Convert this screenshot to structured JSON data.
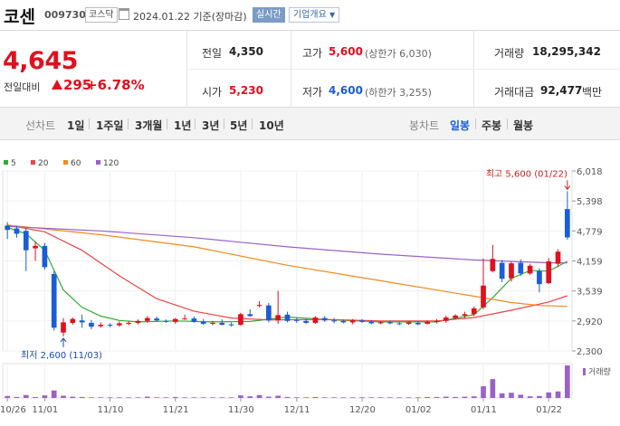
{
  "header": {
    "name": "코센",
    "code": "009730",
    "market_tag": "코스닥",
    "date_text": "2024.01.22 기준(장마감)",
    "live_label": "실시간",
    "corp_label": "기업개요"
  },
  "quote": {
    "price": "4,645",
    "diff_label": "전일대비",
    "diff_value": "295",
    "diff_sep": "|",
    "diff_pct": "+6.78%"
  },
  "stats": {
    "prev_label": "전일",
    "prev_value": "4,350",
    "open_label": "시가",
    "open_value": "5,230",
    "high_label": "고가",
    "high_value": "5,600",
    "upper_limit": "(상한가 6,030)",
    "low_label": "저가",
    "low_value": "4,600",
    "lower_limit": "(하한가 3,255)",
    "volume_label": "거래량",
    "volume_value": "18,295,342",
    "amount_label": "거래대금",
    "amount_value": "92,477",
    "amount_unit": "백만"
  },
  "period": {
    "line_label": "선차트",
    "line_options": [
      "1일",
      "1주일",
      "3개월",
      "1년",
      "3년",
      "5년",
      "10년"
    ],
    "candle_label": "봉차트",
    "candle_options": [
      "일봉",
      "주봉",
      "월봉"
    ],
    "active_candle": "일봉"
  },
  "colors": {
    "up": "#e0101e",
    "down": "#1a5ed6",
    "ma5": "#33aa33",
    "ma20": "#ee4444",
    "ma60": "#f08a1c",
    "ma120": "#9a62c8",
    "volume": "#9a62c8"
  },
  "chart_data": {
    "type": "candlestick",
    "legend": [
      {
        "name": "5",
        "color": "#33aa33"
      },
      {
        "name": "20",
        "color": "#ee4444"
      },
      {
        "name": "60",
        "color": "#f08a1c"
      },
      {
        "name": "120",
        "color": "#9a62c8"
      }
    ],
    "yticks": [
      6018,
      5398,
      4779,
      4159,
      3539,
      2920,
      2300
    ],
    "ytick_labels": [
      "6,018",
      "5,398",
      "4,779",
      "4,159",
      "3,539",
      "2,920",
      "2,300"
    ],
    "ylim": [
      2300,
      6018
    ],
    "xticks": [
      {
        "label": "10/26",
        "index": 0
      },
      {
        "label": "11/01",
        "index": 4
      },
      {
        "label": "11/10",
        "index": 11
      },
      {
        "label": "11/21",
        "index": 18
      },
      {
        "label": "11/30",
        "index": 25
      },
      {
        "label": "12/11",
        "index": 31
      },
      {
        "label": "12/20",
        "index": 38
      },
      {
        "label": "01/02",
        "index": 44
      },
      {
        "label": "01/11",
        "index": 51
      },
      {
        "label": "01/22",
        "index": 58
      }
    ],
    "max_annotation": "최고 5,600 (01/22)",
    "min_annotation": "최저 2,600 (11/03)",
    "volume_label": "거래량",
    "candles": [
      {
        "o": 4890,
        "h": 4960,
        "l": 4610,
        "c": 4800
      },
      {
        "o": 4830,
        "h": 4880,
        "l": 4640,
        "c": 4720
      },
      {
        "o": 4780,
        "h": 4830,
        "l": 3950,
        "c": 4380
      },
      {
        "o": 4420,
        "h": 4560,
        "l": 4160,
        "c": 4470
      },
      {
        "o": 4470,
        "h": 4530,
        "l": 3980,
        "c": 4030
      },
      {
        "o": 3890,
        "h": 3950,
        "l": 2720,
        "c": 2780
      },
      {
        "o": 2680,
        "h": 2980,
        "l": 2600,
        "c": 2890
      },
      {
        "o": 2880,
        "h": 2990,
        "l": 2840,
        "c": 2960
      },
      {
        "o": 2930,
        "h": 3050,
        "l": 2780,
        "c": 2890
      },
      {
        "o": 2880,
        "h": 2940,
        "l": 2750,
        "c": 2800
      },
      {
        "o": 2810,
        "h": 2890,
        "l": 2780,
        "c": 2840
      },
      {
        "o": 2840,
        "h": 2870,
        "l": 2790,
        "c": 2820
      },
      {
        "o": 2830,
        "h": 2910,
        "l": 2800,
        "c": 2870
      },
      {
        "o": 2860,
        "h": 2920,
        "l": 2830,
        "c": 2880
      },
      {
        "o": 2880,
        "h": 2950,
        "l": 2850,
        "c": 2920
      },
      {
        "o": 2920,
        "h": 3020,
        "l": 2880,
        "c": 2980
      },
      {
        "o": 2970,
        "h": 3010,
        "l": 2900,
        "c": 2930
      },
      {
        "o": 2920,
        "h": 2950,
        "l": 2880,
        "c": 2900
      },
      {
        "o": 2900,
        "h": 2980,
        "l": 2860,
        "c": 2960
      },
      {
        "o": 2960,
        "h": 3050,
        "l": 2940,
        "c": 2970
      },
      {
        "o": 2970,
        "h": 3010,
        "l": 2880,
        "c": 2900
      },
      {
        "o": 2900,
        "h": 2960,
        "l": 2840,
        "c": 2860
      },
      {
        "o": 2860,
        "h": 2920,
        "l": 2830,
        "c": 2880
      },
      {
        "o": 2880,
        "h": 2950,
        "l": 2830,
        "c": 2840
      },
      {
        "o": 2850,
        "h": 2890,
        "l": 2800,
        "c": 2830
      },
      {
        "o": 2840,
        "h": 3090,
        "l": 2820,
        "c": 3060
      },
      {
        "o": 3060,
        "h": 3160,
        "l": 3000,
        "c": 3020
      },
      {
        "o": 3250,
        "h": 3330,
        "l": 3200,
        "c": 3250
      },
      {
        "o": 3240,
        "h": 3290,
        "l": 2890,
        "c": 2930
      },
      {
        "o": 2930,
        "h": 3540,
        "l": 2860,
        "c": 3040
      },
      {
        "o": 3050,
        "h": 3110,
        "l": 2890,
        "c": 2920
      },
      {
        "o": 2940,
        "h": 2990,
        "l": 2880,
        "c": 2920
      },
      {
        "o": 2920,
        "h": 2960,
        "l": 2860,
        "c": 2880
      },
      {
        "o": 2880,
        "h": 3020,
        "l": 2860,
        "c": 2990
      },
      {
        "o": 2980,
        "h": 3020,
        "l": 2900,
        "c": 2930
      },
      {
        "o": 2930,
        "h": 2980,
        "l": 2870,
        "c": 2910
      },
      {
        "o": 2920,
        "h": 2950,
        "l": 2870,
        "c": 2890
      },
      {
        "o": 2890,
        "h": 2960,
        "l": 2850,
        "c": 2930
      },
      {
        "o": 2930,
        "h": 2960,
        "l": 2880,
        "c": 2900
      },
      {
        "o": 2900,
        "h": 2940,
        "l": 2850,
        "c": 2870
      },
      {
        "o": 2870,
        "h": 2920,
        "l": 2850,
        "c": 2890
      },
      {
        "o": 2890,
        "h": 2930,
        "l": 2850,
        "c": 2870
      },
      {
        "o": 2870,
        "h": 2900,
        "l": 2830,
        "c": 2860
      },
      {
        "o": 2860,
        "h": 2910,
        "l": 2840,
        "c": 2890
      },
      {
        "o": 2880,
        "h": 2920,
        "l": 2830,
        "c": 2850
      },
      {
        "o": 2860,
        "h": 2930,
        "l": 2850,
        "c": 2900
      },
      {
        "o": 2900,
        "h": 2960,
        "l": 2870,
        "c": 2920
      },
      {
        "o": 2920,
        "h": 3030,
        "l": 2880,
        "c": 2990
      },
      {
        "o": 2980,
        "h": 3060,
        "l": 2950,
        "c": 3030
      },
      {
        "o": 3030,
        "h": 3110,
        "l": 2980,
        "c": 3060
      },
      {
        "o": 3060,
        "h": 3220,
        "l": 3020,
        "c": 3180
      },
      {
        "o": 3200,
        "h": 4210,
        "l": 3160,
        "c": 3650
      },
      {
        "o": 3950,
        "h": 4490,
        "l": 3920,
        "c": 4200
      },
      {
        "o": 4120,
        "h": 4180,
        "l": 3720,
        "c": 3790
      },
      {
        "o": 3800,
        "h": 4150,
        "l": 3730,
        "c": 4110
      },
      {
        "o": 4120,
        "h": 4190,
        "l": 3850,
        "c": 3900
      },
      {
        "o": 3900,
        "h": 4100,
        "l": 3870,
        "c": 4060
      },
      {
        "o": 3950,
        "h": 4010,
        "l": 3510,
        "c": 3680
      },
      {
        "o": 3700,
        "h": 4220,
        "l": 3680,
        "c": 4150
      },
      {
        "o": 4100,
        "h": 4400,
        "l": 4030,
        "c": 4350
      },
      {
        "o": 5230,
        "h": 5600,
        "l": 4600,
        "c": 4645
      }
    ],
    "volumes": [
      0.06,
      0.03,
      0.09,
      0.03,
      0.08,
      0.23,
      0.07,
      0.04,
      0.03,
      0.02,
      0.02,
      0.02,
      0.02,
      0.02,
      0.02,
      0.04,
      0.02,
      0.02,
      0.03,
      0.02,
      0.02,
      0.02,
      0.02,
      0.02,
      0.02,
      0.08,
      0.05,
      0.09,
      0.04,
      0.07,
      0.03,
      0.02,
      0.02,
      0.03,
      0.02,
      0.02,
      0.02,
      0.02,
      0.02,
      0.02,
      0.02,
      0.02,
      0.02,
      0.02,
      0.02,
      0.03,
      0.03,
      0.04,
      0.03,
      0.04,
      0.05,
      0.36,
      0.58,
      0.14,
      0.16,
      0.1,
      0.05,
      0.06,
      0.17,
      0.2,
      1.0
    ],
    "ma_lines": {
      "ma5": [
        [
          0,
          4850
        ],
        [
          2,
          4720
        ],
        [
          4,
          4380
        ],
        [
          6,
          3560
        ],
        [
          8,
          3200
        ],
        [
          10,
          3020
        ],
        [
          12,
          2930
        ],
        [
          14,
          2900
        ],
        [
          18,
          2920
        ],
        [
          22,
          2900
        ],
        [
          26,
          2910
        ],
        [
          30,
          3000
        ],
        [
          34,
          2950
        ],
        [
          40,
          2900
        ],
        [
          46,
          2900
        ],
        [
          50,
          3050
        ],
        [
          52,
          3400
        ],
        [
          54,
          3800
        ],
        [
          56,
          3960
        ],
        [
          58,
          3950
        ],
        [
          60,
          4150
        ]
      ],
      "ma20": [
        [
          0,
          4900
        ],
        [
          4,
          4760
        ],
        [
          8,
          4380
        ],
        [
          12,
          3850
        ],
        [
          16,
          3380
        ],
        [
          20,
          3120
        ],
        [
          24,
          2980
        ],
        [
          28,
          2940
        ],
        [
          34,
          2950
        ],
        [
          40,
          2920
        ],
        [
          46,
          2920
        ],
        [
          50,
          2990
        ],
        [
          54,
          3140
        ],
        [
          58,
          3310
        ],
        [
          60,
          3440
        ]
      ],
      "ma60": [
        [
          0,
          4900
        ],
        [
          10,
          4700
        ],
        [
          20,
          4450
        ],
        [
          30,
          4070
        ],
        [
          40,
          3750
        ],
        [
          50,
          3430
        ],
        [
          54,
          3300
        ],
        [
          57,
          3240
        ],
        [
          60,
          3220
        ]
      ],
      "ma120": [
        [
          0,
          4870
        ],
        [
          10,
          4780
        ],
        [
          20,
          4640
        ],
        [
          30,
          4450
        ],
        [
          40,
          4300
        ],
        [
          50,
          4180
        ],
        [
          54,
          4150
        ],
        [
          58,
          4120
        ],
        [
          60,
          4120
        ]
      ]
    }
  }
}
